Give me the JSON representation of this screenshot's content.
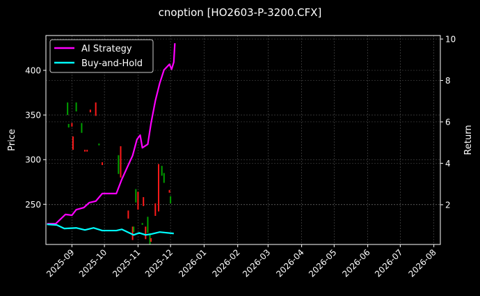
{
  "chart_data": {
    "type": "line",
    "title": "cnoption [HO2603-P-3200.CFX]",
    "ylabel": "Price",
    "y2label": "Return",
    "xlim": [
      "2025-08-08",
      "2026-08-07"
    ],
    "ylim": [
      205,
      439
    ],
    "y2lim": [
      0.08,
      10.17
    ],
    "x_ticks": [
      "2025-09",
      "2025-10",
      "2025-11",
      "2025-12",
      "2026-01",
      "2026-02",
      "2026-03",
      "2026-04",
      "2026-05",
      "2026-06",
      "2026-07",
      "2026-08"
    ],
    "y_ticks": [
      250,
      300,
      350,
      400
    ],
    "y2_ticks": [
      2,
      4,
      6,
      8,
      10
    ],
    "grid": true,
    "legend_position": "top-left",
    "background": "#000000",
    "candles": {
      "up_color": "#00a000",
      "down_color": "#ff1a1a",
      "data": [
        {
          "date": "2025-08-28",
          "open": 350,
          "close": 364
        },
        {
          "date": "2025-08-29",
          "open": 336,
          "close": 340
        },
        {
          "date": "2025-09-01",
          "open": 341,
          "close": 337
        },
        {
          "date": "2025-09-02",
          "open": 326,
          "close": 311
        },
        {
          "date": "2025-09-05",
          "open": 354,
          "close": 364
        },
        {
          "date": "2025-09-10",
          "open": 330,
          "close": 341
        },
        {
          "date": "2025-09-13",
          "open": 311,
          "close": 309
        },
        {
          "date": "2025-09-15",
          "open": 311,
          "close": 309
        },
        {
          "date": "2025-09-18",
          "open": 356,
          "close": 353
        },
        {
          "date": "2025-09-23",
          "open": 364,
          "close": 349
        },
        {
          "date": "2025-09-26",
          "open": 316,
          "close": 318
        },
        {
          "date": "2025-09-29",
          "open": 297,
          "close": 294
        },
        {
          "date": "2025-10-14",
          "open": 284,
          "close": 305
        },
        {
          "date": "2025-10-16",
          "open": 315,
          "close": 280
        },
        {
          "date": "2025-10-23",
          "open": 243,
          "close": 234
        },
        {
          "date": "2025-10-27",
          "open": 225,
          "close": 210
        },
        {
          "date": "2025-10-28",
          "open": 219,
          "close": 225
        },
        {
          "date": "2025-10-30",
          "open": 252,
          "close": 267
        },
        {
          "date": "2025-11-01",
          "open": 264,
          "close": 244
        },
        {
          "date": "2025-11-05",
          "open": 227,
          "close": 229
        },
        {
          "date": "2025-11-06",
          "open": 258,
          "close": 248
        },
        {
          "date": "2025-11-08",
          "open": 225,
          "close": 211
        },
        {
          "date": "2025-11-10",
          "open": 218,
          "close": 236
        },
        {
          "date": "2025-11-12",
          "open": 205,
          "close": 217
        },
        {
          "date": "2025-11-13",
          "open": 212,
          "close": 208
        },
        {
          "date": "2025-11-17",
          "open": 251,
          "close": 237
        },
        {
          "date": "2025-11-20",
          "open": 295,
          "close": 242
        },
        {
          "date": "2025-11-23",
          "open": 282,
          "close": 293
        },
        {
          "date": "2025-11-25",
          "open": 274,
          "close": 285
        },
        {
          "date": "2025-11-30",
          "open": 266,
          "close": 263
        },
        {
          "date": "2025-12-01",
          "open": 251,
          "close": 259
        }
      ]
    },
    "series": [
      {
        "name": "AI Strategy",
        "axis": "right",
        "color": "#ff00ff",
        "x": [
          "2025-08-09",
          "2025-08-17",
          "2025-08-26",
          "2025-09-01",
          "2025-09-05",
          "2025-09-12",
          "2025-09-17",
          "2025-09-23",
          "2025-09-29",
          "2025-10-12",
          "2025-10-17",
          "2025-10-22",
          "2025-10-27",
          "2025-10-31",
          "2025-11-03",
          "2025-11-05",
          "2025-11-10",
          "2025-11-13",
          "2025-11-17",
          "2025-11-21",
          "2025-11-25",
          "2025-11-30",
          "2025-12-02",
          "2025-12-04",
          "2025-12-05"
        ],
        "y": [
          1.08,
          1.08,
          1.53,
          1.49,
          1.76,
          1.86,
          2.1,
          2.17,
          2.54,
          2.54,
          3.22,
          3.8,
          4.37,
          5.15,
          5.36,
          4.75,
          4.92,
          5.93,
          7.02,
          7.86,
          8.51,
          8.78,
          8.54,
          8.88,
          9.8
        ]
      },
      {
        "name": "Buy-and-Hold",
        "axis": "right",
        "color": "#00ffff",
        "x": [
          "2025-08-09",
          "2025-08-18",
          "2025-08-25",
          "2025-09-05",
          "2025-09-13",
          "2025-09-21",
          "2025-09-29",
          "2025-10-12",
          "2025-10-17",
          "2025-10-28",
          "2025-11-02",
          "2025-11-08",
          "2025-11-13",
          "2025-11-21",
          "2025-12-04"
        ],
        "y": [
          1.05,
          1.02,
          0.85,
          0.88,
          0.78,
          0.88,
          0.75,
          0.75,
          0.81,
          0.54,
          0.64,
          0.54,
          0.58,
          0.68,
          0.61
        ]
      }
    ]
  }
}
